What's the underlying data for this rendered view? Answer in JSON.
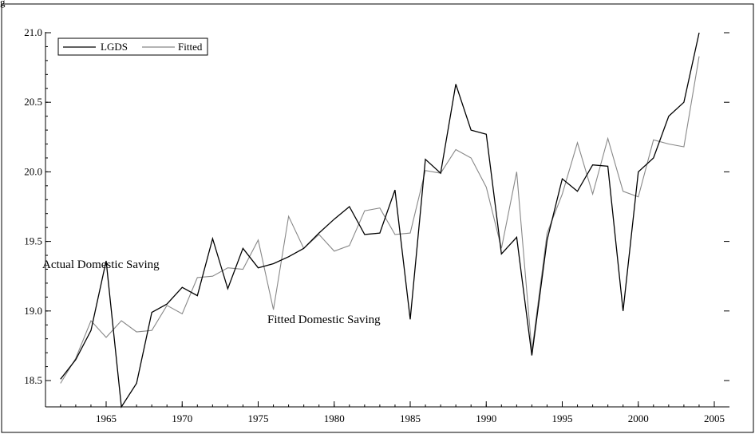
{
  "chart_data": {
    "type": "line",
    "title": "",
    "xlabel": "",
    "ylabel": "",
    "xlim": [
      1961,
      2006
    ],
    "ylim": [
      18.3,
      21.1
    ],
    "x_ticks": [
      "1965",
      "1970",
      "1975",
      "1980",
      "1985",
      "1990",
      "1995",
      "2000",
      "2005"
    ],
    "y_ticks": [
      "18.5",
      "19.0",
      "19.5",
      "20.0",
      "20.5",
      "21.0"
    ],
    "x": [
      1962,
      1963,
      1964,
      1965,
      1966,
      1967,
      1968,
      1969,
      1970,
      1971,
      1972,
      1973,
      1974,
      1975,
      1976,
      1977,
      1978,
      1979,
      1980,
      1981,
      1982,
      1983,
      1984,
      1985,
      1986,
      1987,
      1988,
      1989,
      1990,
      1991,
      1992,
      1993,
      1994,
      1995,
      1996,
      1997,
      1998,
      1999,
      2000,
      2001,
      2002,
      2003,
      2004
    ],
    "series": [
      {
        "name": "LGDS",
        "color": "#000000",
        "values": [
          18.51,
          18.65,
          18.86,
          19.36,
          18.28,
          18.48,
          18.99,
          19.05,
          19.17,
          19.11,
          19.52,
          19.16,
          19.45,
          19.31,
          19.34,
          19.39,
          19.45,
          19.56,
          19.66,
          19.75,
          19.55,
          19.56,
          19.87,
          18.94,
          20.09,
          19.99,
          20.63,
          20.3,
          20.27,
          19.41,
          19.53,
          18.68,
          19.51,
          19.95,
          19.86,
          20.05,
          20.04,
          19.0,
          20.0,
          20.1,
          20.4,
          20.5,
          21.0
        ]
      },
      {
        "name": "Fitted",
        "color": "#888888",
        "values": [
          18.48,
          18.66,
          18.93,
          18.81,
          18.93,
          18.85,
          18.86,
          19.04,
          18.98,
          19.24,
          19.25,
          19.31,
          19.3,
          19.51,
          19.01,
          19.68,
          19.45,
          19.55,
          19.43,
          19.47,
          19.72,
          19.74,
          19.55,
          19.56,
          20.01,
          19.99,
          20.16,
          20.1,
          19.89,
          19.45,
          20.0,
          18.71,
          19.56,
          19.84,
          20.21,
          19.84,
          20.24,
          19.86,
          19.82,
          20.23,
          20.2,
          20.18,
          20.83
        ]
      }
    ],
    "legend_position": "top-left",
    "annotations": [
      {
        "text": "Actual Domestic Saving"
      },
      {
        "text": "Fitted Domestic Saving"
      }
    ],
    "top_label": "g"
  }
}
